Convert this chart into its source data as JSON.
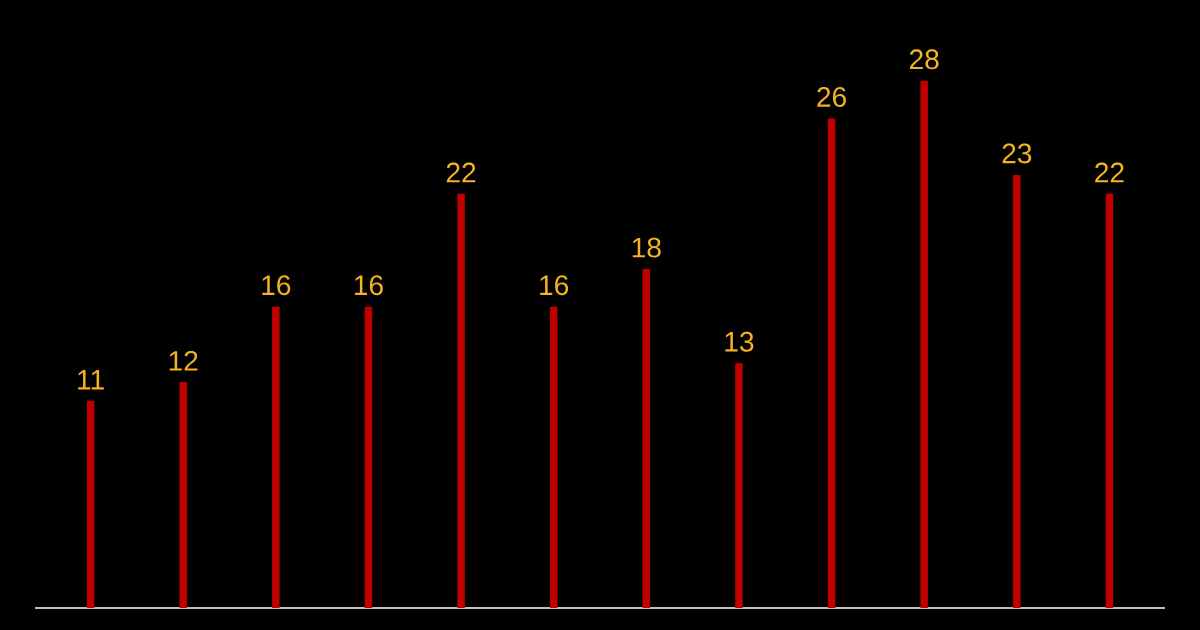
{
  "chart_data": {
    "type": "bar",
    "categories": [
      null,
      null,
      null,
      null,
      null,
      null,
      null,
      null,
      null,
      null,
      null,
      null
    ],
    "values": [
      11,
      12,
      16,
      16,
      22,
      16,
      18,
      13,
      26,
      28,
      23,
      22
    ],
    "color": "#c00000",
    "data_labels": true
  }
}
